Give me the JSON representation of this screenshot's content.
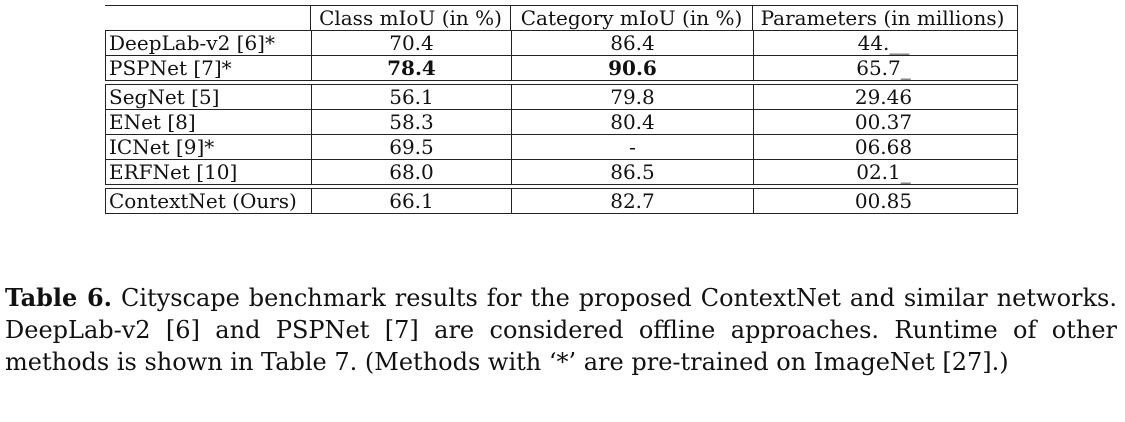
{
  "table": {
    "headers": [
      "",
      "Class mIoU (in %)",
      "Category mIoU (in %)",
      "Parameters (in millions)"
    ],
    "groups": [
      [
        {
          "method": "DeepLab-v2 [6]*",
          "class": "70.4",
          "category": "86.4",
          "params": "44.__",
          "bold": false
        },
        {
          "method": "PSPNet [7]*",
          "class": "78.4",
          "category": "90.6",
          "params": "65.7_",
          "bold": true
        }
      ],
      [
        {
          "method": "SegNet [5]",
          "class": "56.1",
          "category": "79.8",
          "params": "29.46",
          "bold": false
        },
        {
          "method": "ENet [8]",
          "class": "58.3",
          "category": "80.4",
          "params": "00.37",
          "bold": false
        },
        {
          "method": "ICNet [9]*",
          "class": "69.5",
          "category": "-",
          "params": "06.68",
          "bold": false
        },
        {
          "method": "ERFNet [10]",
          "class": "68.0",
          "category": "86.5",
          "params": "02.1_",
          "bold": false
        }
      ],
      [
        {
          "method": "ContextNet (Ours)",
          "class": "66.1",
          "category": "82.7",
          "params": "00.85",
          "bold": false
        }
      ]
    ]
  },
  "caption": {
    "label": "Table 6.",
    "text": " Cityscape benchmark results for the proposed ContextNet and similar networks. DeepLab-v2 [6] and PSPNet [7] are considered offline approaches. Runtime of other methods is shown in Table 7. (Methods with ‘*’ are pre-trained on ImageNet [27].)"
  }
}
